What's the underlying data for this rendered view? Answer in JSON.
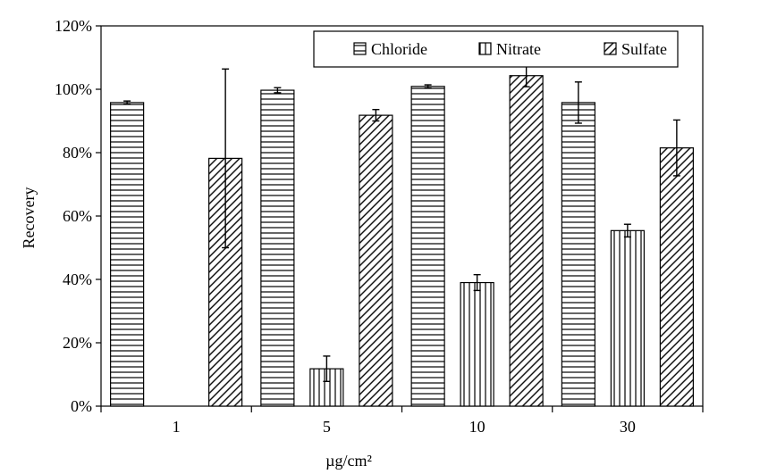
{
  "chart_data": {
    "type": "bar",
    "title": "",
    "xlabel": "µg/cm²",
    "ylabel": "Recovery",
    "categories": [
      "1",
      "5",
      "10",
      "30"
    ],
    "ylim": [
      0,
      120
    ],
    "yticks": [
      "0%",
      "20%",
      "40%",
      "60%",
      "80%",
      "100%",
      "120%"
    ],
    "grid": false,
    "legend_position": "top-right",
    "series": [
      {
        "name": "Chloride",
        "pattern": "horizontal-lines",
        "values": [
          95.8,
          99.7,
          100.9,
          95.8
        ],
        "errors": [
          0.5,
          0.8,
          0.5,
          6.5
        ]
      },
      {
        "name": "Nitrate",
        "pattern": "vertical-lines",
        "values": [
          0,
          11.8,
          39.0,
          55.4
        ],
        "errors": [
          0,
          4.0,
          2.5,
          2.0
        ]
      },
      {
        "name": "Sulfate",
        "pattern": "diagonal-lines",
        "values": [
          78.2,
          91.8,
          104.3,
          81.5
        ],
        "errors": [
          28.2,
          1.8,
          3.5,
          8.8
        ]
      }
    ]
  }
}
